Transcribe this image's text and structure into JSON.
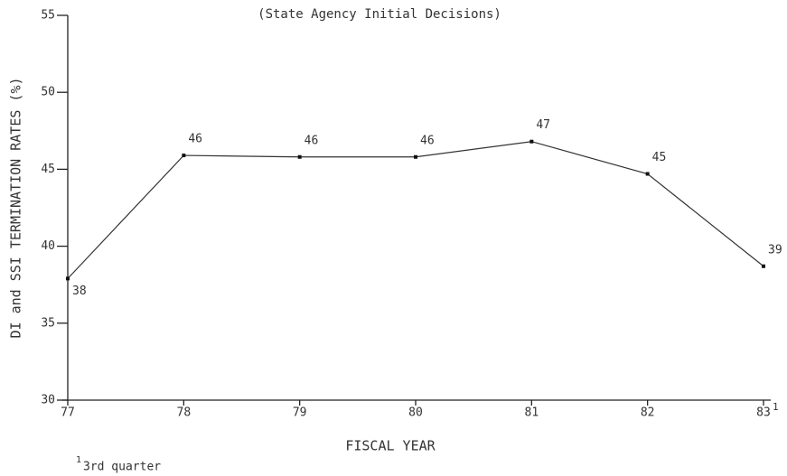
{
  "chart_data": {
    "type": "line",
    "title": "(State Agency Initial Decisions)",
    "x_label": "FISCAL YEAR",
    "y_label": "DI and SSI TERMINATION RATES (%)",
    "categories": [
      "77",
      "78",
      "79",
      "80",
      "81",
      "82",
      "83"
    ],
    "values": [
      37.9,
      45.9,
      45.8,
      45.8,
      46.8,
      44.7,
      38.7
    ],
    "value_labels": [
      "38",
      "46",
      "46",
      "46",
      "47",
      "45",
      "39"
    ],
    "color": "#333333",
    "ylim": [
      30,
      55
    ],
    "yticks": [
      30,
      35,
      40,
      45,
      50,
      55
    ],
    "grid": false,
    "footnote": {
      "marker": "1",
      "text": "3rd quarter"
    }
  }
}
